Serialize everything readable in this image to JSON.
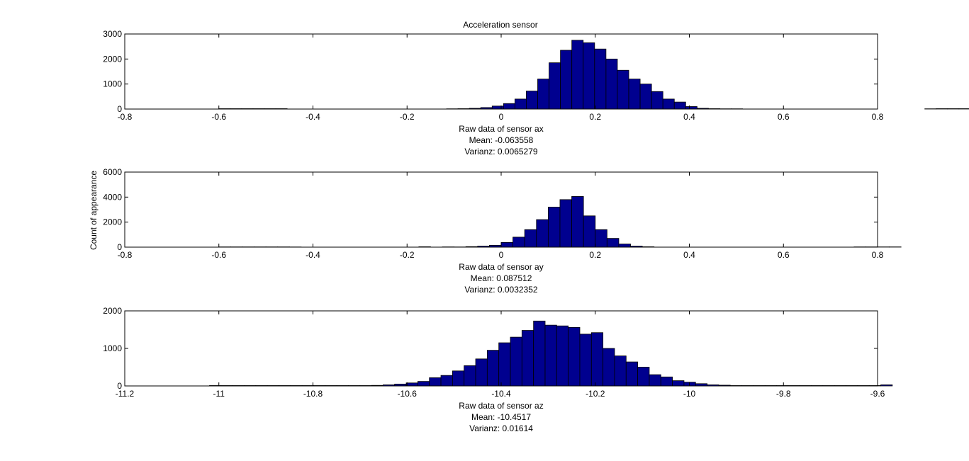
{
  "figure": {
    "title": "Acceleration sensor",
    "ylabel": "Count of appearance"
  },
  "chart_data": [
    {
      "type": "bar",
      "subtype": "histogram",
      "title": "Acceleration sensor",
      "xlabel_lines": [
        "Raw data of sensor ax",
        "Mean: -0.063558",
        "Varianz: 0.0065279"
      ],
      "ylabel": "",
      "xlim": [
        -0.8,
        0.8
      ],
      "ylim": [
        0,
        3000
      ],
      "xticks": [
        -0.8,
        -0.6,
        -0.4,
        -0.2,
        0,
        0.2,
        0.4,
        0.6,
        0.8
      ],
      "xtick_labels": [
        "-0.8",
        "-0.6",
        "-0.4",
        "-0.2",
        "0",
        "0.2",
        "0.4",
        "0.6",
        "0.8"
      ],
      "yticks": [
        0,
        1000,
        2000,
        3000
      ],
      "ytick_labels": [
        "0",
        "1000",
        "2000",
        "3000"
      ],
      "bin_start": -0.6,
      "bin_width": 0.0242,
      "values": [
        15,
        15,
        15,
        15,
        15,
        15,
        0,
        0,
        0,
        0,
        0,
        0,
        0,
        0,
        0,
        0,
        0,
        0,
        0,
        0,
        10,
        15,
        30,
        60,
        120,
        220,
        400,
        720,
        1200,
        1850,
        2350,
        2750,
        2650,
        2400,
        2000,
        1550,
        1200,
        1000,
        700,
        400,
        280,
        100,
        30,
        15,
        10,
        10,
        0,
        0,
        0,
        0,
        0,
        0,
        0,
        0,
        0,
        0,
        0,
        0,
        0,
        0,
        0,
        0,
        10,
        15,
        15,
        15,
        15,
        15,
        15
      ]
    },
    {
      "type": "bar",
      "subtype": "histogram",
      "title": "",
      "xlabel_lines": [
        "Raw data of sensor ay",
        "Mean: 0.087512",
        "Varianz: 0.0032352"
      ],
      "ylabel": "Count of appearance",
      "xlim": [
        -0.8,
        0.8
      ],
      "ylim": [
        0,
        6000
      ],
      "xticks": [
        -0.8,
        -0.6,
        -0.4,
        -0.2,
        0,
        0.2,
        0.4,
        0.6,
        0.8
      ],
      "xtick_labels": [
        "-0.8",
        "-0.6",
        "-0.4",
        "-0.2",
        "0",
        "0.2",
        "0.4",
        "0.6",
        "0.8"
      ],
      "yticks": [
        0,
        2000,
        4000,
        6000
      ],
      "ytick_labels": [
        "0",
        "2000",
        "4000",
        "6000"
      ],
      "bin_start": -0.6,
      "bin_width": 0.025,
      "values": [
        20,
        20,
        20,
        20,
        20,
        20,
        15,
        0,
        0,
        0,
        0,
        0,
        0,
        0,
        0,
        0,
        0,
        30,
        0,
        20,
        15,
        40,
        80,
        150,
        380,
        800,
        1400,
        2200,
        3200,
        3800,
        4050,
        2500,
        1400,
        700,
        250,
        80,
        30,
        0,
        0,
        0,
        0,
        0,
        0,
        0,
        0,
        0,
        0,
        0,
        0,
        0,
        0,
        0,
        0,
        0,
        20,
        20,
        20,
        20
      ]
    },
    {
      "type": "bar",
      "subtype": "histogram",
      "title": "",
      "xlabel_lines": [
        "Raw data of sensor az",
        "Mean: -10.4517",
        "Varianz: 0.01614"
      ],
      "ylabel": "",
      "xlim": [
        -11.2,
        -9.6
      ],
      "ylim": [
        0,
        2000
      ],
      "xticks": [
        -11.2,
        -11,
        -10.8,
        -10.6,
        -10.4,
        -10.2,
        -10,
        -9.8,
        -9.6
      ],
      "xtick_labels": [
        "-11.2",
        "-11",
        "-10.8",
        "-10.6",
        "-10.4",
        "-10.2",
        "-10",
        "-9.8",
        "-9.6"
      ],
      "yticks": [
        0,
        1000,
        2000
      ],
      "ytick_labels": [
        "0",
        "1000",
        "2000"
      ],
      "bin_start": -11.02,
      "bin_width": 0.0246,
      "values": [
        10,
        10,
        10,
        10,
        10,
        10,
        10,
        10,
        10,
        10,
        10,
        10,
        10,
        10,
        15,
        30,
        50,
        80,
        120,
        220,
        280,
        400,
        540,
        720,
        950,
        1150,
        1300,
        1480,
        1730,
        1620,
        1600,
        1560,
        1380,
        1420,
        1000,
        800,
        640,
        500,
        300,
        240,
        140,
        100,
        60,
        30,
        20,
        10,
        10,
        10,
        10,
        10,
        10,
        10,
        10,
        10,
        10,
        10,
        10,
        10,
        30
      ]
    }
  ]
}
